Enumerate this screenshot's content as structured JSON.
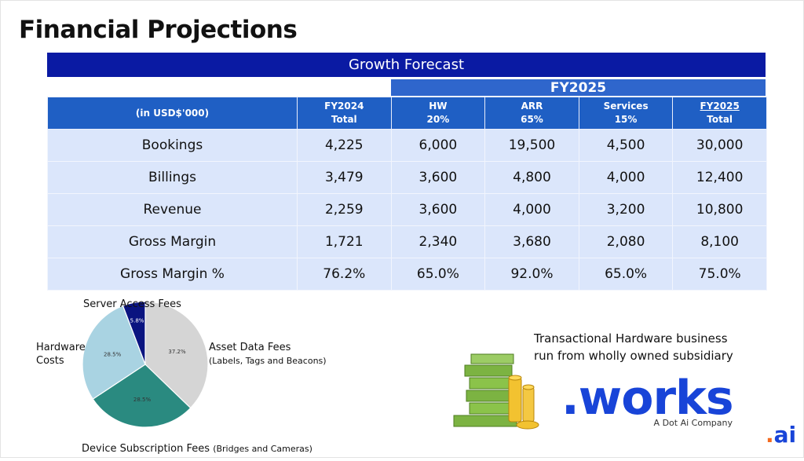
{
  "title": "Financial Projections",
  "banner": "Growth Forecast",
  "fy_header": "FY2025",
  "table": {
    "headers": [
      {
        "line1": "(in USD$'000)",
        "line2": ""
      },
      {
        "line1": "FY2024",
        "line2": "Total"
      },
      {
        "line1": "HW",
        "line2": "20%"
      },
      {
        "line1": "ARR",
        "line2": "65%"
      },
      {
        "line1": "Services",
        "line2": "15%"
      },
      {
        "line1": "FY2025",
        "line2": "Total"
      }
    ],
    "rows": [
      {
        "label": "Bookings",
        "values": [
          "4,225",
          "6,000",
          "19,500",
          "4,500",
          "30,000"
        ]
      },
      {
        "label": "Billings",
        "values": [
          "3,479",
          "3,600",
          "4,800",
          "4,000",
          "12,400"
        ]
      },
      {
        "label": "Revenue",
        "values": [
          "2,259",
          "3,600",
          "4,000",
          "3,200",
          "10,800"
        ]
      },
      {
        "label": "Gross Margin",
        "values": [
          "1,721",
          "2,340",
          "3,680",
          "2,080",
          "8,100"
        ]
      },
      {
        "label": "Gross Margin %",
        "values": [
          "76.2%",
          "65.0%",
          "92.0%",
          "65.0%",
          "75.0%"
        ]
      }
    ]
  },
  "chart_data": {
    "type": "pie",
    "slices": [
      {
        "label": "Asset Data Fees",
        "sublabel": "(Labels, Tags and Beacons)",
        "value": 37.2,
        "value_label": "37.2%",
        "color": "#d5d5d5"
      },
      {
        "label": "Device Subscription Fees",
        "sublabel": "(Bridges and Cameras)",
        "value": 28.5,
        "value_label": "28.5%",
        "color": "#2a8a80"
      },
      {
        "label": "Hardware Costs",
        "sublabel": "",
        "value": 28.5,
        "value_label": "28.5%",
        "color": "#a9d3e2"
      },
      {
        "label": "Server Access Fees",
        "sublabel": "",
        "value": 5.8,
        "value_label": "5.8%",
        "color": "#0a1480"
      }
    ]
  },
  "pie_labels": {
    "server": "Server Access Fees",
    "hardware_line1": "Hardware",
    "hardware_line2": "Costs",
    "asset": "Asset Data Fees",
    "asset_sub": "(Labels, Tags and Beacons)",
    "device": "Device Subscription Fees",
    "device_sub": "(Bridges and Cameras)"
  },
  "callout": {
    "line1": "Transactional Hardware business",
    "line2": "run from wholly owned subsidiary"
  },
  "works_logo": {
    "text": ".works",
    "subtitle": "A Dot Ai Company"
  },
  "ai_logo": {
    "dot": ".",
    "text": "ai"
  },
  "colors": {
    "banner": "#0a1aa3",
    "header": "#1f5fc4",
    "cell": "#dbe6fb",
    "brand": "#1844d8",
    "brand_accent": "#f36a1f"
  }
}
